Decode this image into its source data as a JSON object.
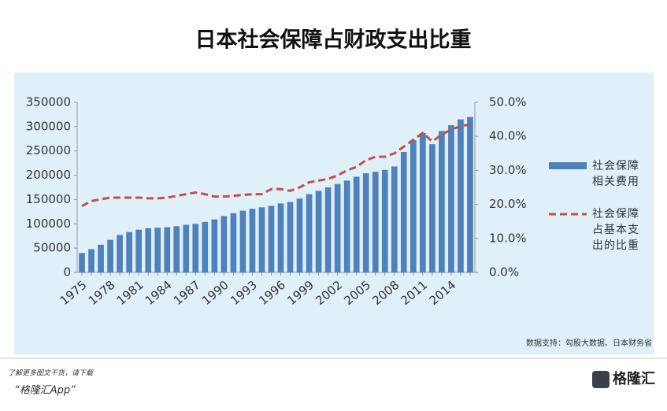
{
  "chart_data": {
    "type": "bar_line",
    "title": "日本社会保障占财政支出比重",
    "categories": [
      "1975",
      null,
      null,
      "1978",
      null,
      null,
      "1981",
      null,
      null,
      "1984",
      null,
      null,
      "1987",
      null,
      null,
      "1990",
      null,
      null,
      "1993",
      null,
      null,
      "1996",
      null,
      null,
      "1999",
      null,
      null,
      "2002",
      null,
      null,
      "2005",
      null,
      null,
      "2008",
      null,
      null,
      "2011",
      null,
      null,
      "2014",
      null,
      null
    ],
    "series": [
      {
        "name": "社会保障相关费用",
        "type": "bar",
        "color": "#4f81bd",
        "values": [
          40000,
          48000,
          57000,
          67000,
          77000,
          83000,
          88000,
          91000,
          92000,
          93000,
          95000,
          98000,
          100000,
          104000,
          109000,
          116000,
          122000,
          127000,
          131000,
          134000,
          137000,
          142000,
          145000,
          152000,
          161000,
          168000,
          175000,
          182000,
          189000,
          197000,
          204000,
          207000,
          211000,
          218000,
          248000,
          272000,
          287000,
          264000,
          291000,
          303000,
          315000,
          320000
        ]
      },
      {
        "name": "社会保障占基本支出的比重",
        "type": "line",
        "axis": "y2",
        "color": "#c0504d",
        "dashed": true,
        "values": [
          19.5,
          21,
          21.5,
          22,
          22,
          22,
          22,
          21.8,
          21.8,
          22,
          22.5,
          23,
          23.5,
          23,
          22.3,
          22.3,
          22.5,
          22.8,
          23,
          23,
          24.5,
          24.5,
          24,
          25,
          26.5,
          27,
          27.5,
          28.5,
          30,
          31,
          33,
          34,
          34,
          35,
          37,
          39,
          41,
          38.5,
          40.5,
          42,
          43,
          43.5
        ]
      }
    ],
    "ylim": [
      0,
      350000
    ],
    "yticks": [
      0,
      50000,
      100000,
      150000,
      200000,
      250000,
      300000,
      350000
    ],
    "y2lim": [
      0,
      50
    ],
    "y2ticks": [
      {
        "value": 0,
        "label": "0.0%"
      },
      {
        "value": 10,
        "label": "10.0%"
      },
      {
        "value": 20,
        "label": "20.0%"
      },
      {
        "value": 30,
        "label": "30.0%"
      },
      {
        "value": 40,
        "label": "40.0%"
      },
      {
        "value": 50,
        "label": "50.0%"
      }
    ],
    "grid": false,
    "legend": "right",
    "source": "数据支持：勾股大数据、日本财务省"
  },
  "footer": {
    "note": "了解更多图文干货，请下载",
    "app": "“格隆汇App”",
    "logo": "格隆汇"
  }
}
